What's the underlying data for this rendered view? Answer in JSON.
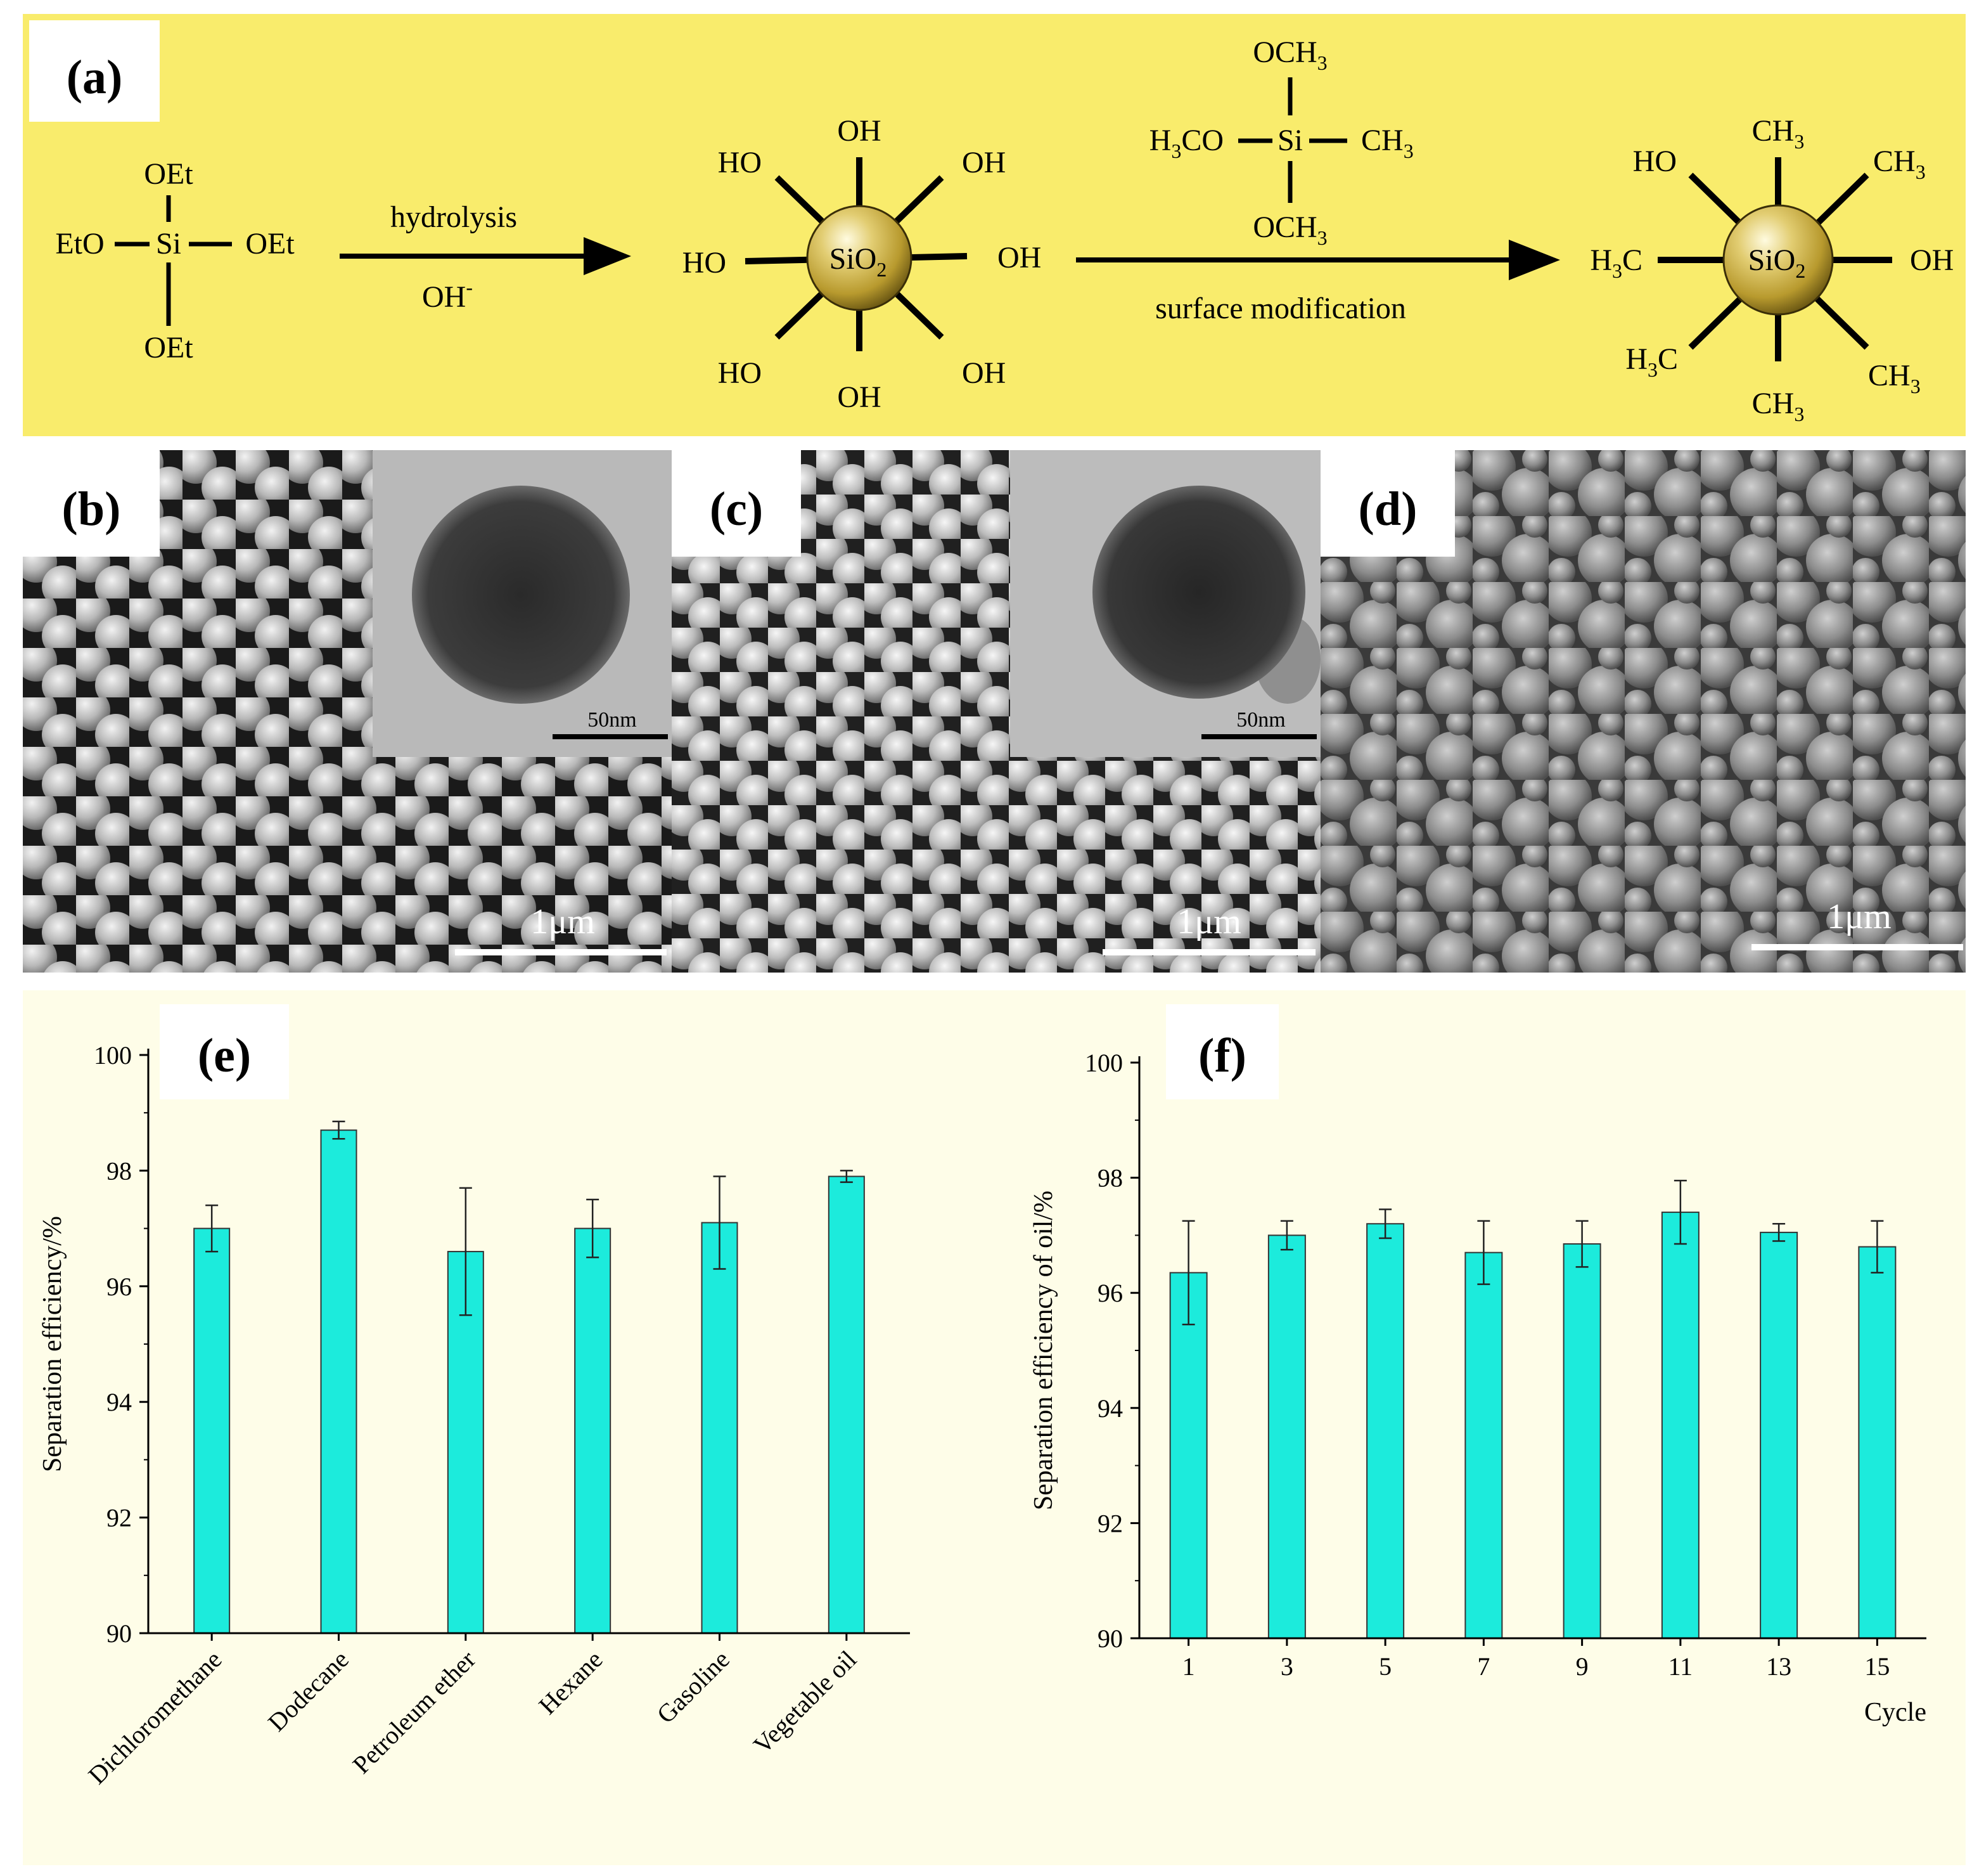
{
  "panel_a": {
    "label": "(a)",
    "teos": {
      "center": "Si",
      "top": "OEt",
      "bottom": "OEt",
      "left": "EtO",
      "right": "OEt"
    },
    "arrow1": {
      "above": "hydrolysis",
      "below_base": "OH",
      "below_sup": "-"
    },
    "particle1": {
      "core_base": "SiO",
      "core_sub": "2",
      "groups": [
        "OH",
        "OH",
        "OH",
        "OH",
        "OH",
        "HO",
        "HO",
        "HO"
      ]
    },
    "reagent": {
      "center": "Si",
      "top_base": "OCH",
      "top_sub": "3",
      "bottom_base": "OCH",
      "bottom_sub": "3",
      "left_a": "H",
      "left_sub": "3",
      "left_b": "CO",
      "right_base": "CH",
      "right_sub": "3"
    },
    "arrow2": {
      "below": "surface modification"
    },
    "particle2": {
      "core_base": "SiO",
      "core_sub": "2",
      "top_base": "CH",
      "top_sub": "3",
      "top_right_base": "CH",
      "top_right_sub": "3",
      "right": "OH",
      "bottom_right_base": "CH",
      "bottom_right_sub": "3",
      "bottom_base": "CH",
      "bottom_sub": "3",
      "bottom_left_a": "H",
      "bottom_left_sub": "3",
      "bottom_left_b": "C",
      "left_a": "H",
      "left_sub": "3",
      "left_b": "C",
      "top_left": "HO"
    },
    "colors": {
      "background": "#f9ec6c",
      "sphere": "#c8b048"
    }
  },
  "panel_b": {
    "label": "(b)",
    "inset_scale": "50nm",
    "scale": "1μm"
  },
  "panel_c": {
    "label": "(c)",
    "inset_scale": "50nm",
    "scale": "1μm"
  },
  "panel_d": {
    "label": "(d)",
    "scale": "1μm"
  },
  "chart_data": [
    {
      "panel": "(e)",
      "type": "bar",
      "xlabel": "",
      "ylabel": "Separation efficiency/%",
      "categories": [
        "Dichloromethane",
        "Dodecane",
        "Petroleum ether",
        "Hexane",
        "Gasoline",
        "Vegetable oil"
      ],
      "values": [
        97.0,
        98.7,
        96.6,
        97.0,
        97.1,
        97.9
      ],
      "errors": [
        0.4,
        0.15,
        1.1,
        0.5,
        0.8,
        0.1
      ],
      "ylim": [
        90,
        100
      ],
      "yticks": [
        90,
        92,
        94,
        96,
        98,
        100
      ],
      "bar_color": "#1cebdc",
      "background": "#fefde8"
    },
    {
      "panel": "(f)",
      "type": "bar",
      "xlabel": "Cycle",
      "ylabel": "Separation efficiency of oil/%",
      "categories": [
        "1",
        "3",
        "5",
        "7",
        "9",
        "11",
        "13",
        "15"
      ],
      "values": [
        96.35,
        97.0,
        97.2,
        96.7,
        96.85,
        97.4,
        97.05,
        96.8
      ],
      "errors": [
        0.9,
        0.25,
        0.25,
        0.55,
        0.4,
        0.55,
        0.15,
        0.45
      ],
      "ylim": [
        90,
        100
      ],
      "yticks": [
        90,
        92,
        94,
        96,
        98,
        100
      ],
      "bar_color": "#1cebdc",
      "background": "#fefde8"
    }
  ]
}
